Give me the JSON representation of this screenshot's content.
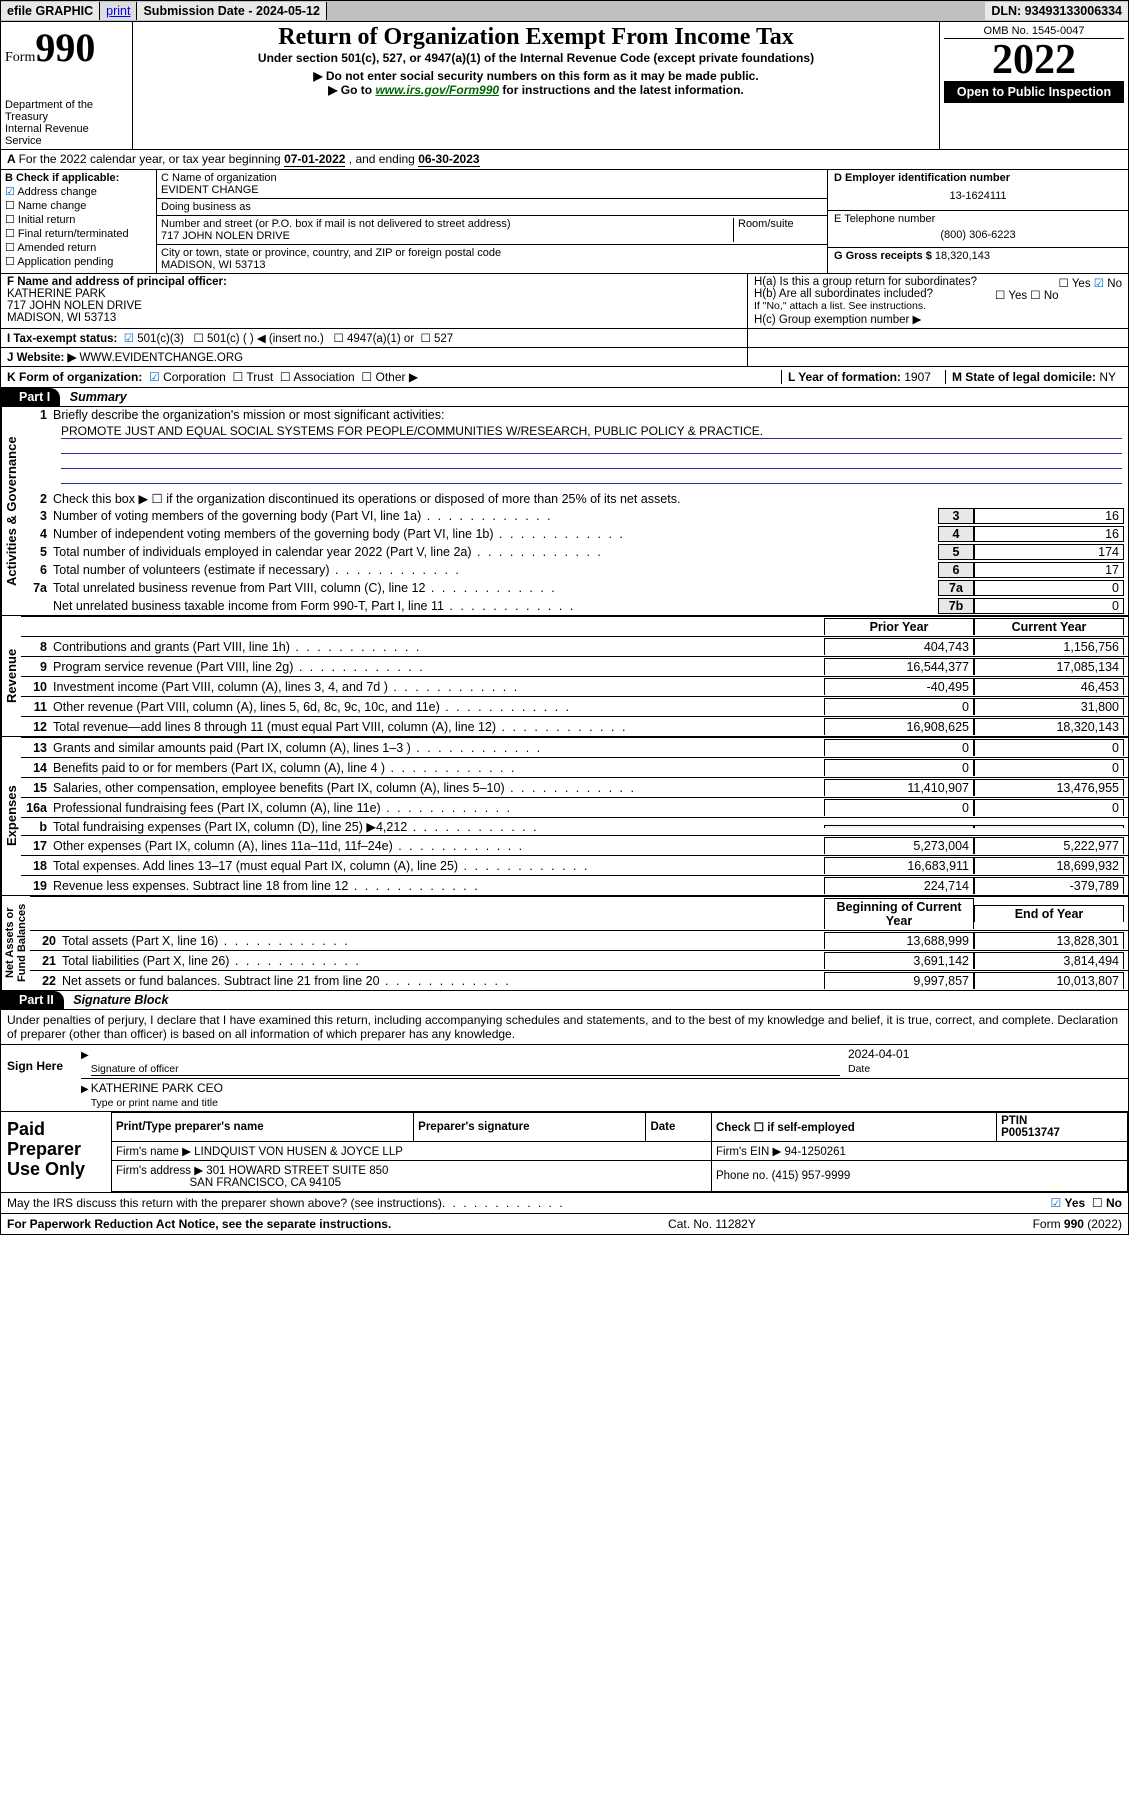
{
  "topbar": {
    "efile": "efile GRAPHIC",
    "print": "print",
    "subdate_label": "Submission Date - ",
    "subdate": "2024-05-12",
    "dln_label": "DLN: ",
    "dln": "93493133006334"
  },
  "header": {
    "form_word": "Form",
    "form_num": "990",
    "dept": "Department of the Treasury\nInternal Revenue Service",
    "title": "Return of Organization Exempt From Income Tax",
    "subtitle": "Under section 501(c), 527, or 4947(a)(1) of the Internal Revenue Code (except private foundations)",
    "note1": "▶ Do not enter social security numbers on this form as it may be made public.",
    "note2_pre": "▶ Go to ",
    "note2_link": "www.irs.gov/Form990",
    "note2_post": " for instructions and the latest information.",
    "omb": "OMB No. 1545-0047",
    "year": "2022",
    "open": "Open to Public Inspection"
  },
  "A": {
    "text": "For the 2022 calendar year, or tax year beginning ",
    "begin": "07-01-2022",
    "mid": " , and ending ",
    "end": "06-30-2023"
  },
  "B": {
    "label": "B Check if applicable:",
    "items": [
      "Address change",
      "Name change",
      "Initial return",
      "Final return/terminated",
      "Amended return",
      "Application pending"
    ],
    "checked_idx": 0
  },
  "C": {
    "name_label": "C Name of organization",
    "name": "EVIDENT CHANGE",
    "dba_label": "Doing business as",
    "dba": "",
    "addr_label": "Number and street (or P.O. box if mail is not delivered to street address)",
    "room_label": "Room/suite",
    "addr": "717 JOHN NOLEN DRIVE",
    "city_label": "City or town, state or province, country, and ZIP or foreign postal code",
    "city": "MADISON, WI  53713"
  },
  "D": {
    "label": "D Employer identification number",
    "val": "13-1624111"
  },
  "E": {
    "label": "E Telephone number",
    "val": "(800) 306-6223"
  },
  "G": {
    "label": "G Gross receipts $",
    "val": "18,320,143"
  },
  "F": {
    "label": "F  Name and address of principal officer:",
    "name": "KATHERINE PARK",
    "addr1": "717 JOHN NOLEN DRIVE",
    "addr2": "MADISON, WI  53713"
  },
  "H": {
    "a": "H(a)  Is this a group return for subordinates?",
    "a_yes": "Yes",
    "a_no": "No",
    "b": "H(b)  Are all subordinates included?",
    "b_yes": "Yes",
    "b_no": "No",
    "b_note": "If \"No,\" attach a list. See instructions.",
    "c": "H(c)  Group exemption number ▶"
  },
  "I": {
    "label": "I     Tax-exempt status:",
    "opts": [
      "501(c)(3)",
      "501(c) (   ) ◀ (insert no.)",
      "4947(a)(1) or",
      "527"
    ],
    "checked_idx": 0
  },
  "J": {
    "label": "J     Website: ▶",
    "val": "WWW.EVIDENTCHANGE.ORG"
  },
  "K": {
    "label": "K Form of organization:",
    "opts": [
      "Corporation",
      "Trust",
      "Association",
      "Other ▶"
    ],
    "checked_idx": 0
  },
  "L": {
    "label": "L Year of formation:",
    "val": "1907"
  },
  "M": {
    "label": "M State of legal domicile:",
    "val": "NY"
  },
  "partI": {
    "header": "Part I",
    "title": "Summary",
    "line1_label": "Briefly describe the organization's mission or most significant activities:",
    "mission": "PROMOTE JUST AND EQUAL SOCIAL SYSTEMS FOR PEOPLE/COMMUNITIES W/RESEARCH, PUBLIC POLICY & PRACTICE.",
    "line2": "Check this box ▶ ☐  if the organization discontinued its operations or disposed of more than 25% of its net assets.",
    "governance_lines": [
      {
        "n": "3",
        "d": "Number of voting members of the governing body (Part VI, line 1a)",
        "box": "3",
        "v": "16"
      },
      {
        "n": "4",
        "d": "Number of independent voting members of the governing body (Part VI, line 1b)",
        "box": "4",
        "v": "16"
      },
      {
        "n": "5",
        "d": "Total number of individuals employed in calendar year 2022 (Part V, line 2a)",
        "box": "5",
        "v": "174"
      },
      {
        "n": "6",
        "d": "Total number of volunteers (estimate if necessary)",
        "box": "6",
        "v": "17"
      },
      {
        "n": "7a",
        "d": "Total unrelated business revenue from Part VIII, column (C), line 12",
        "box": "7a",
        "v": "0"
      },
      {
        "n": "",
        "d": "Net unrelated business taxable income from Form 990-T, Part I, line 11",
        "box": "7b",
        "v": "0"
      }
    ],
    "colhdr_prior": "Prior Year",
    "colhdr_curr": "Current Year",
    "revenue_lines": [
      {
        "n": "8",
        "d": "Contributions and grants (Part VIII, line 1h)",
        "p": "404,743",
        "c": "1,156,756"
      },
      {
        "n": "9",
        "d": "Program service revenue (Part VIII, line 2g)",
        "p": "16,544,377",
        "c": "17,085,134"
      },
      {
        "n": "10",
        "d": "Investment income (Part VIII, column (A), lines 3, 4, and 7d )",
        "p": "-40,495",
        "c": "46,453"
      },
      {
        "n": "11",
        "d": "Other revenue (Part VIII, column (A), lines 5, 6d, 8c, 9c, 10c, and 11e)",
        "p": "0",
        "c": "31,800"
      },
      {
        "n": "12",
        "d": "Total revenue—add lines 8 through 11 (must equal Part VIII, column (A), line 12)",
        "p": "16,908,625",
        "c": "18,320,143"
      }
    ],
    "expense_lines": [
      {
        "n": "13",
        "d": "Grants and similar amounts paid (Part IX, column (A), lines 1–3 )",
        "p": "0",
        "c": "0"
      },
      {
        "n": "14",
        "d": "Benefits paid to or for members (Part IX, column (A), line 4 )",
        "p": "0",
        "c": "0"
      },
      {
        "n": "15",
        "d": "Salaries, other compensation, employee benefits (Part IX, column (A), lines 5–10)",
        "p": "11,410,907",
        "c": "13,476,955"
      },
      {
        "n": "16a",
        "d": "Professional fundraising fees (Part IX, column (A), line 11e)",
        "p": "0",
        "c": "0"
      },
      {
        "n": "b",
        "d": "Total fundraising expenses (Part IX, column (D), line 25) ▶4,212",
        "p": "",
        "c": "",
        "gray": true
      },
      {
        "n": "17",
        "d": "Other expenses (Part IX, column (A), lines 11a–11d, 11f–24e)",
        "p": "5,273,004",
        "c": "5,222,977"
      },
      {
        "n": "18",
        "d": "Total expenses. Add lines 13–17 (must equal Part IX, column (A), line 25)",
        "p": "16,683,911",
        "c": "18,699,932"
      },
      {
        "n": "19",
        "d": "Revenue less expenses. Subtract line 18 from line 12",
        "p": "224,714",
        "c": "-379,789"
      }
    ],
    "colhdr_begin": "Beginning of Current Year",
    "colhdr_end": "End of Year",
    "netassets_lines": [
      {
        "n": "20",
        "d": "Total assets (Part X, line 16)",
        "p": "13,688,999",
        "c": "13,828,301"
      },
      {
        "n": "21",
        "d": "Total liabilities (Part X, line 26)",
        "p": "3,691,142",
        "c": "3,814,494"
      },
      {
        "n": "22",
        "d": "Net assets or fund balances. Subtract line 21 from line 20",
        "p": "9,997,857",
        "c": "10,013,807"
      }
    ],
    "vlabels": {
      "gov": "Activities & Governance",
      "rev": "Revenue",
      "exp": "Expenses",
      "net": "Net Assets or\nFund Balances"
    }
  },
  "partII": {
    "header": "Part II",
    "title": "Signature Block",
    "decl": "Under penalties of perjury, I declare that I have examined this return, including accompanying schedules and statements, and to the best of my knowledge and belief, it is true, correct, and complete. Declaration of preparer (other than officer) is based on all information of which preparer has any knowledge."
  },
  "sign": {
    "label": "Sign Here",
    "sig_label": "Signature of officer",
    "date_label": "Date",
    "date": "2024-04-01",
    "name": "KATHERINE PARK CEO",
    "name_label": "Type or print name and title"
  },
  "prep": {
    "label": "Paid Preparer Use Only",
    "h_name": "Print/Type preparer's name",
    "h_sig": "Preparer's signature",
    "h_date": "Date",
    "h_self": "Check ☐  if self-employed",
    "h_ptin": "PTIN",
    "ptin": "P00513747",
    "firm_label": "Firm's name     ▶",
    "firm": "LINDQUIST VON HUSEN & JOYCE LLP",
    "ein_label": "Firm's EIN ▶",
    "ein": "94-1250261",
    "addr_label": "Firm's address ▶",
    "addr1": "301 HOWARD STREET SUITE 850",
    "addr2": "SAN FRANCISCO, CA  94105",
    "phone_label": "Phone no.",
    "phone": "(415) 957-9999"
  },
  "footer": {
    "discuss": "May the IRS discuss this return with the preparer shown above? (see instructions)",
    "yes": "Yes",
    "no": "No",
    "paperwork": "For Paperwork Reduction Act Notice, see the separate instructions.",
    "cat": "Cat. No. 11282Y",
    "form": "Form 990 (2022)"
  }
}
